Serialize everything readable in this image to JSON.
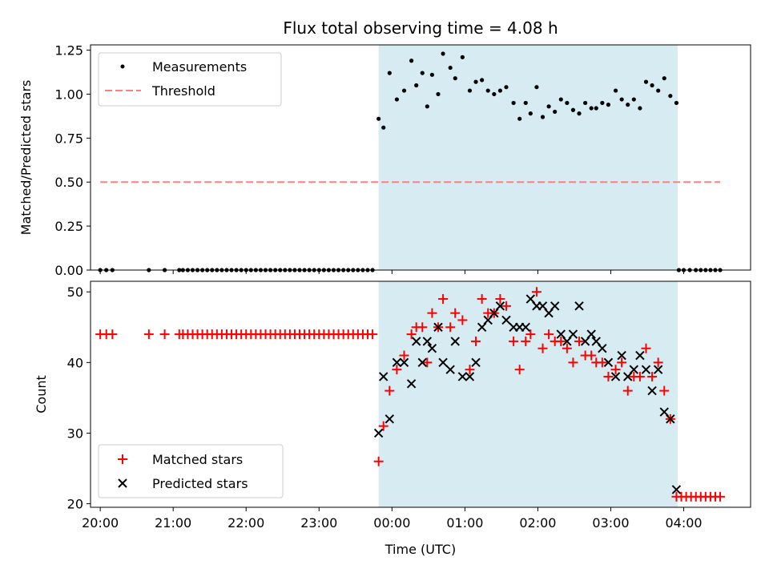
{
  "chart_data": [
    {
      "type": "scatter",
      "title": "Flux total observing time = 4.08 h",
      "ylabel": "Matched/Predicted stars",
      "xlabel": "",
      "xlim": [
        "19:52",
        "04:55"
      ],
      "ylim": [
        0,
        1.28
      ],
      "yticks": [
        "0.00",
        "0.25",
        "0.50",
        "0.75",
        "1.00",
        "1.25"
      ],
      "shaded_region": [
        "23:49",
        "03:55"
      ],
      "legend": {
        "placement": "top-left",
        "entries": [
          "Measurements",
          "Threshold"
        ]
      },
      "threshold": {
        "name": "Threshold",
        "y": 0.5,
        "x": [
          "20:00",
          "04:30"
        ],
        "color": "#ff7f7f"
      },
      "series": [
        {
          "name": "Measurements",
          "color": "#000000",
          "points": [
            [
              "20:00",
              0
            ],
            [
              "20:05",
              0
            ],
            [
              "20:10",
              0
            ],
            [
              "20:40",
              0
            ],
            [
              "20:53",
              0
            ],
            [
              "21:05",
              0
            ],
            [
              "21:08",
              0
            ],
            [
              "21:12",
              0
            ],
            [
              "21:16",
              0
            ],
            [
              "21:20",
              0
            ],
            [
              "21:24",
              0
            ],
            [
              "21:28",
              0
            ],
            [
              "21:32",
              0
            ],
            [
              "21:36",
              0
            ],
            [
              "21:40",
              0
            ],
            [
              "21:44",
              0
            ],
            [
              "21:48",
              0
            ],
            [
              "21:52",
              0
            ],
            [
              "21:56",
              0
            ],
            [
              "22:00",
              0
            ],
            [
              "22:04",
              0
            ],
            [
              "22:08",
              0
            ],
            [
              "22:12",
              0
            ],
            [
              "22:16",
              0
            ],
            [
              "22:20",
              0
            ],
            [
              "22:24",
              0
            ],
            [
              "22:28",
              0
            ],
            [
              "22:32",
              0
            ],
            [
              "22:36",
              0
            ],
            [
              "22:40",
              0
            ],
            [
              "22:44",
              0
            ],
            [
              "22:48",
              0
            ],
            [
              "22:52",
              0
            ],
            [
              "22:56",
              0
            ],
            [
              "23:00",
              0
            ],
            [
              "23:04",
              0
            ],
            [
              "23:08",
              0
            ],
            [
              "23:12",
              0
            ],
            [
              "23:16",
              0
            ],
            [
              "23:20",
              0
            ],
            [
              "23:24",
              0
            ],
            [
              "23:28",
              0
            ],
            [
              "23:32",
              0
            ],
            [
              "23:36",
              0
            ],
            [
              "23:40",
              0
            ],
            [
              "23:44",
              0
            ],
            [
              "23:49",
              0.86
            ],
            [
              "23:53",
              0.81
            ],
            [
              "23:58",
              1.12
            ],
            [
              "00:04",
              0.97
            ],
            [
              "00:10",
              1.02
            ],
            [
              "00:16",
              1.19
            ],
            [
              "00:20",
              1.05
            ],
            [
              "00:25",
              1.12
            ],
            [
              "00:29",
              0.93
            ],
            [
              "00:33",
              1.11
            ],
            [
              "00:38",
              1.0
            ],
            [
              "00:42",
              1.23
            ],
            [
              "00:48",
              1.15
            ],
            [
              "00:52",
              1.09
            ],
            [
              "00:58",
              1.21
            ],
            [
              "01:04",
              1.02
            ],
            [
              "01:09",
              1.07
            ],
            [
              "01:14",
              1.08
            ],
            [
              "01:19",
              1.02
            ],
            [
              "01:24",
              1.0
            ],
            [
              "01:29",
              1.02
            ],
            [
              "01:34",
              1.04
            ],
            [
              "01:40",
              0.95
            ],
            [
              "01:45",
              0.86
            ],
            [
              "01:50",
              0.95
            ],
            [
              "01:54",
              0.89
            ],
            [
              "01:59",
              1.04
            ],
            [
              "02:04",
              0.87
            ],
            [
              "02:09",
              0.93
            ],
            [
              "02:14",
              0.9
            ],
            [
              "02:19",
              0.97
            ],
            [
              "02:24",
              0.95
            ],
            [
              "02:29",
              0.91
            ],
            [
              "02:34",
              0.89
            ],
            [
              "02:39",
              0.95
            ],
            [
              "02:44",
              0.92
            ],
            [
              "02:48",
              0.92
            ],
            [
              "02:53",
              0.95
            ],
            [
              "02:58",
              0.94
            ],
            [
              "03:04",
              1.02
            ],
            [
              "03:09",
              0.97
            ],
            [
              "03:14",
              0.94
            ],
            [
              "03:19",
              0.97
            ],
            [
              "03:24",
              0.92
            ],
            [
              "03:29",
              1.07
            ],
            [
              "03:34",
              1.05
            ],
            [
              "03:39",
              1.02
            ],
            [
              "03:44",
              1.09
            ],
            [
              "03:49",
              0.99
            ],
            [
              "03:54",
              0.95
            ],
            [
              "03:56",
              0
            ],
            [
              "04:00",
              0
            ],
            [
              "04:05",
              0
            ],
            [
              "04:10",
              0
            ],
            [
              "04:14",
              0
            ],
            [
              "04:18",
              0
            ],
            [
              "04:22",
              0
            ],
            [
              "04:26",
              0
            ],
            [
              "04:30",
              0
            ]
          ]
        }
      ]
    },
    {
      "type": "scatter",
      "title": "",
      "ylabel": "Count",
      "xlabel": "Time (UTC)",
      "xlim": [
        "19:52",
        "04:55"
      ],
      "ylim": [
        19.5,
        51.5
      ],
      "yticks": [
        "20",
        "30",
        "40",
        "50"
      ],
      "xticks": [
        "20:00",
        "21:00",
        "22:00",
        "23:00",
        "00:00",
        "01:00",
        "02:00",
        "03:00",
        "04:00"
      ],
      "shaded_region": [
        "23:49",
        "03:55"
      ],
      "legend": {
        "placement": "bottom-left",
        "entries": [
          "Matched stars",
          "Predicted stars"
        ]
      },
      "series": [
        {
          "name": "Matched stars",
          "marker": "plus",
          "color": "#ff0000",
          "points": [
            [
              "20:00",
              44
            ],
            [
              "20:05",
              44
            ],
            [
              "20:10",
              44
            ],
            [
              "20:40",
              44
            ],
            [
              "20:53",
              44
            ],
            [
              "21:05",
              44
            ],
            [
              "21:08",
              44
            ],
            [
              "21:12",
              44
            ],
            [
              "21:16",
              44
            ],
            [
              "21:20",
              44
            ],
            [
              "21:24",
              44
            ],
            [
              "21:28",
              44
            ],
            [
              "21:32",
              44
            ],
            [
              "21:36",
              44
            ],
            [
              "21:40",
              44
            ],
            [
              "21:44",
              44
            ],
            [
              "21:48",
              44
            ],
            [
              "21:52",
              44
            ],
            [
              "21:56",
              44
            ],
            [
              "22:00",
              44
            ],
            [
              "22:04",
              44
            ],
            [
              "22:08",
              44
            ],
            [
              "22:12",
              44
            ],
            [
              "22:16",
              44
            ],
            [
              "22:20",
              44
            ],
            [
              "22:24",
              44
            ],
            [
              "22:28",
              44
            ],
            [
              "22:32",
              44
            ],
            [
              "22:36",
              44
            ],
            [
              "22:40",
              44
            ],
            [
              "22:44",
              44
            ],
            [
              "22:48",
              44
            ],
            [
              "22:52",
              44
            ],
            [
              "22:56",
              44
            ],
            [
              "23:00",
              44
            ],
            [
              "23:04",
              44
            ],
            [
              "23:08",
              44
            ],
            [
              "23:12",
              44
            ],
            [
              "23:16",
              44
            ],
            [
              "23:20",
              44
            ],
            [
              "23:24",
              44
            ],
            [
              "23:28",
              44
            ],
            [
              "23:32",
              44
            ],
            [
              "23:36",
              44
            ],
            [
              "23:40",
              44
            ],
            [
              "23:44",
              44
            ],
            [
              "23:49",
              26
            ],
            [
              "23:53",
              31
            ],
            [
              "23:58",
              36
            ],
            [
              "00:04",
              39
            ],
            [
              "00:10",
              41
            ],
            [
              "00:16",
              44
            ],
            [
              "00:20",
              45
            ],
            [
              "00:25",
              45
            ],
            [
              "00:29",
              40
            ],
            [
              "00:33",
              47
            ],
            [
              "00:38",
              45
            ],
            [
              "00:42",
              49
            ],
            [
              "00:48",
              45
            ],
            [
              "00:52",
              47
            ],
            [
              "00:58",
              46
            ],
            [
              "01:04",
              39
            ],
            [
              "01:09",
              43
            ],
            [
              "01:14",
              49
            ],
            [
              "01:19",
              47
            ],
            [
              "01:24",
              47
            ],
            [
              "01:29",
              49
            ],
            [
              "01:34",
              48
            ],
            [
              "01:40",
              43
            ],
            [
              "01:45",
              39
            ],
            [
              "01:50",
              43
            ],
            [
              "01:54",
              44
            ],
            [
              "01:59",
              50
            ],
            [
              "02:04",
              42
            ],
            [
              "02:09",
              44
            ],
            [
              "02:14",
              43
            ],
            [
              "02:19",
              43
            ],
            [
              "02:24",
              42
            ],
            [
              "02:29",
              40
            ],
            [
              "02:34",
              43
            ],
            [
              "02:39",
              41
            ],
            [
              "02:44",
              41
            ],
            [
              "02:48",
              40
            ],
            [
              "02:53",
              40
            ],
            [
              "02:58",
              38
            ],
            [
              "03:04",
              39
            ],
            [
              "03:09",
              40
            ],
            [
              "03:14",
              36
            ],
            [
              "03:19",
              38
            ],
            [
              "03:24",
              38
            ],
            [
              "03:29",
              42
            ],
            [
              "03:34",
              38
            ],
            [
              "03:39",
              40
            ],
            [
              "03:44",
              36
            ],
            [
              "03:49",
              32
            ],
            [
              "03:54",
              21
            ],
            [
              "03:58",
              21
            ],
            [
              "04:02",
              21
            ],
            [
              "04:06",
              21
            ],
            [
              "04:10",
              21
            ],
            [
              "04:14",
              21
            ],
            [
              "04:18",
              21
            ],
            [
              "04:22",
              21
            ],
            [
              "04:26",
              21
            ],
            [
              "04:30",
              21
            ]
          ]
        },
        {
          "name": "Predicted stars",
          "marker": "x",
          "color": "#000000",
          "points": [
            [
              "23:49",
              30
            ],
            [
              "23:53",
              38
            ],
            [
              "23:58",
              32
            ],
            [
              "00:04",
              40
            ],
            [
              "00:10",
              40
            ],
            [
              "00:16",
              37
            ],
            [
              "00:20",
              43
            ],
            [
              "00:25",
              40
            ],
            [
              "00:29",
              43
            ],
            [
              "00:33",
              42
            ],
            [
              "00:38",
              45
            ],
            [
              "00:42",
              40
            ],
            [
              "00:48",
              39
            ],
            [
              "00:52",
              43
            ],
            [
              "00:58",
              38
            ],
            [
              "01:04",
              38
            ],
            [
              "01:09",
              40
            ],
            [
              "01:14",
              45
            ],
            [
              "01:19",
              46
            ],
            [
              "01:24",
              47
            ],
            [
              "01:29",
              48
            ],
            [
              "01:34",
              46
            ],
            [
              "01:40",
              45
            ],
            [
              "01:45",
              45
            ],
            [
              "01:50",
              45
            ],
            [
              "01:54",
              49
            ],
            [
              "01:59",
              48
            ],
            [
              "02:04",
              48
            ],
            [
              "02:09",
              47
            ],
            [
              "02:14",
              48
            ],
            [
              "02:19",
              44
            ],
            [
              "02:24",
              43
            ],
            [
              "02:29",
              44
            ],
            [
              "02:34",
              48
            ],
            [
              "02:39",
              43
            ],
            [
              "02:44",
              44
            ],
            [
              "02:48",
              43
            ],
            [
              "02:53",
              42
            ],
            [
              "02:58",
              40
            ],
            [
              "03:04",
              38
            ],
            [
              "03:09",
              41
            ],
            [
              "03:14",
              38
            ],
            [
              "03:19",
              39
            ],
            [
              "03:24",
              41
            ],
            [
              "03:29",
              39
            ],
            [
              "03:34",
              36
            ],
            [
              "03:39",
              39
            ],
            [
              "03:44",
              33
            ],
            [
              "03:49",
              32
            ],
            [
              "03:54",
              22
            ]
          ]
        }
      ]
    }
  ]
}
